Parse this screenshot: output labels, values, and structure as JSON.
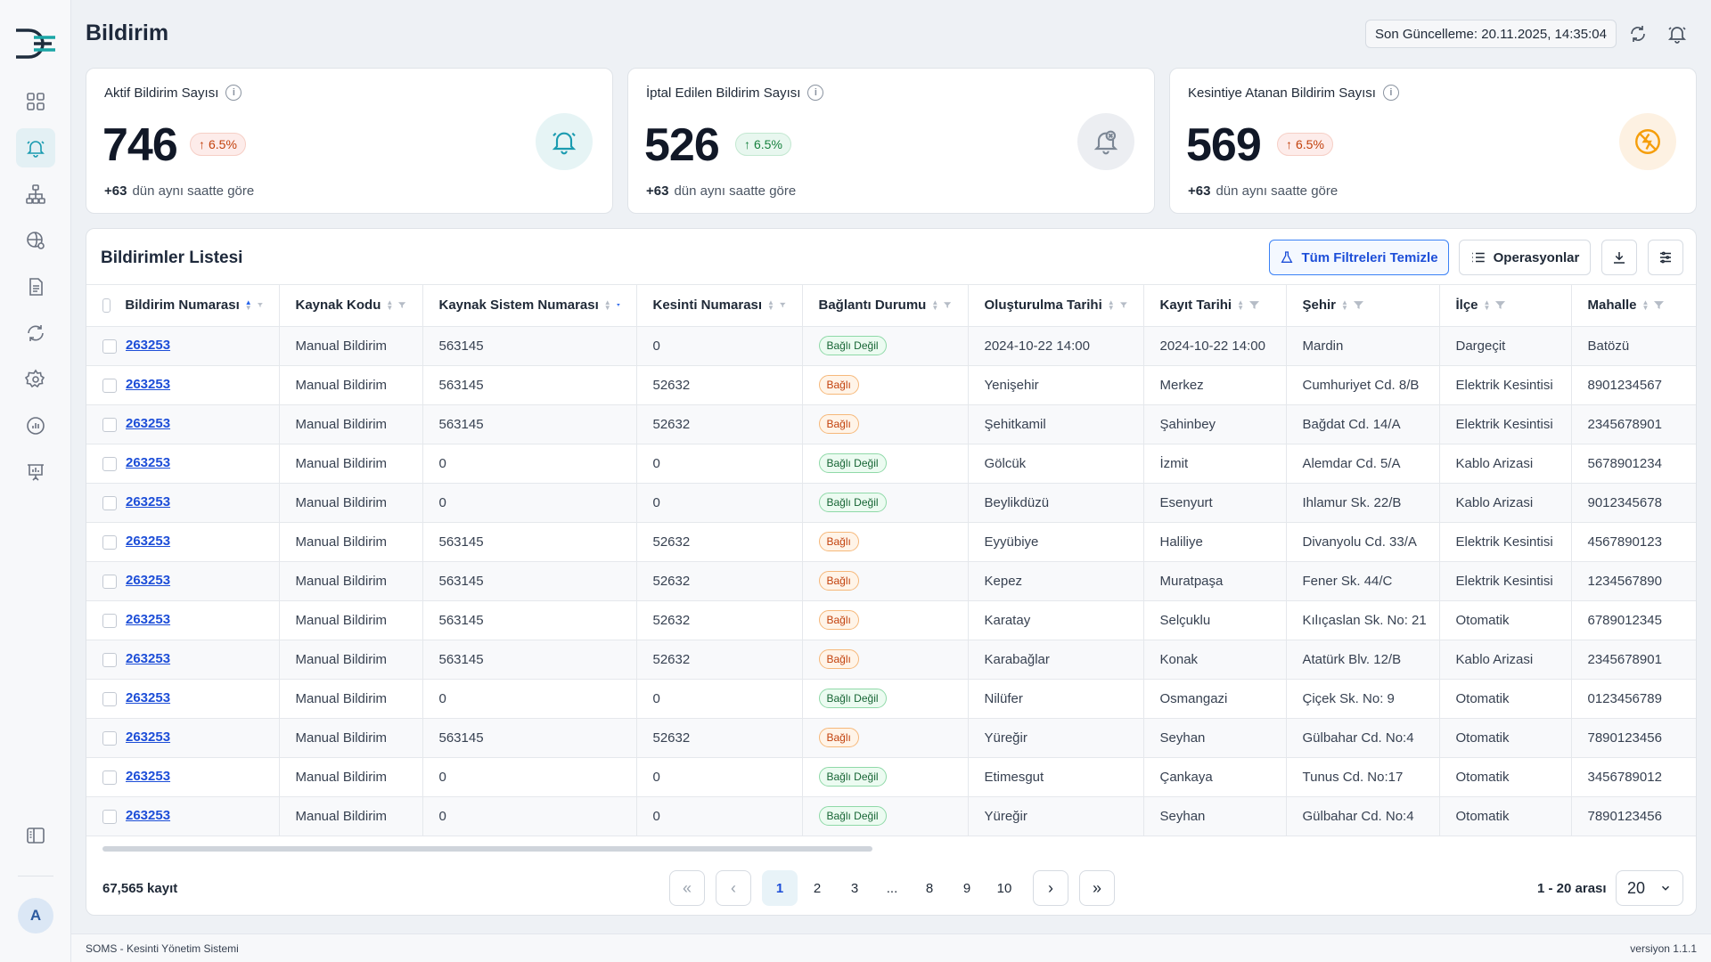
{
  "page": {
    "title": "Bildirim",
    "last_update": "Son Güncelleme: 20.11.2025, 14:35:04"
  },
  "sidebar": {
    "avatar_initial": "A"
  },
  "cards": [
    {
      "title": "Aktif Bildirim Sayısı",
      "value": "746",
      "trend": "6.5%",
      "trend_color": "red",
      "delta": "+63",
      "delta_text": "dün aynı saatte göre",
      "icon": "bell-icon"
    },
    {
      "title": "İptal Edilen Bildirim Sayısı",
      "value": "526",
      "trend": "6.5%",
      "trend_color": "green",
      "delta": "+63",
      "delta_text": "dün aynı saatte göre",
      "icon": "bell-cancel-icon"
    },
    {
      "title": "Kesintiye Atanan Bildirim Sayısı",
      "value": "569",
      "trend": "6.5%",
      "trend_color": "red",
      "delta": "+63",
      "delta_text": "dün aynı saatte göre",
      "icon": "power-off-icon"
    }
  ],
  "list": {
    "title": "Bildirimler Listesi",
    "clear_filters": "Tüm Filtreleri Temizle",
    "operations": "Operasyonlar",
    "columns": [
      "Bildirim Numarası",
      "Kaynak Kodu",
      "Kaynak Sistem Numarası",
      "Kesinti Numarası",
      "Bağlantı Durumu",
      "Oluşturulma Tarihi",
      "Kayıt Tarihi",
      "Şehir",
      "İlçe",
      "Mahalle"
    ],
    "rows": [
      [
        "263253",
        "Manual Bildirim",
        "563145",
        "0",
        "Bağlı Değil",
        "2024-10-22 14:00",
        "2024-10-22 14:00",
        "Mardin",
        "Dargeçit",
        "Batözü"
      ],
      [
        "263253",
        "Manual Bildirim",
        "563145",
        "52632",
        "Bağlı",
        "Yenişehir",
        "Merkez",
        "Cumhuriyet Cd. 8/B",
        "Elektrik Kesintisi",
        "8901234567"
      ],
      [
        "263253",
        "Manual Bildirim",
        "563145",
        "52632",
        "Bağlı",
        "Şehitkamil",
        "Şahinbey",
        "Bağdat Cd. 14/A",
        "Elektrik Kesintisi",
        "2345678901"
      ],
      [
        "263253",
        "Manual Bildirim",
        "0",
        "0",
        "Bağlı Değil",
        "Gölcük",
        "İzmit",
        "Alemdar Cd. 5/A",
        "Kablo Arizasi",
        "5678901234"
      ],
      [
        "263253",
        "Manual Bildirim",
        "0",
        "0",
        "Bağlı Değil",
        "Beylikdüzü",
        "Esenyurt",
        "Ihlamur Sk. 22/B",
        "Kablo Arizasi",
        "9012345678"
      ],
      [
        "263253",
        "Manual Bildirim",
        "563145",
        "52632",
        "Bağlı",
        "Eyyübiye",
        "Haliliye",
        "Divanyolu Cd. 33/A",
        "Elektrik Kesintisi",
        "4567890123"
      ],
      [
        "263253",
        "Manual Bildirim",
        "563145",
        "52632",
        "Bağlı",
        "Kepez",
        "Muratpaşa",
        "Fener Sk. 44/C",
        "Elektrik Kesintisi",
        "1234567890"
      ],
      [
        "263253",
        "Manual Bildirim",
        "563145",
        "52632",
        "Bağlı",
        "Karatay",
        "Selçuklu",
        "Kılıçaslan Sk. No: 21",
        "Otomatik",
        "6789012345"
      ],
      [
        "263253",
        "Manual Bildirim",
        "563145",
        "52632",
        "Bağlı",
        "Karabağlar",
        "Konak",
        "Atatürk Blv. 12/B",
        "Kablo Arizasi",
        "2345678901"
      ],
      [
        "263253",
        "Manual Bildirim",
        "0",
        "0",
        "Bağlı Değil",
        "Nilüfer",
        "Osmangazi",
        "Çiçek Sk. No: 9",
        "Otomatik",
        "0123456789"
      ],
      [
        "263253",
        "Manual Bildirim",
        "563145",
        "52632",
        "Bağlı",
        "Yüreğir",
        "Seyhan",
        "Gülbahar Cd. No:4",
        "Otomatik",
        "7890123456"
      ],
      [
        "263253",
        "Manual Bildirim",
        "0",
        "0",
        "Bağlı Değil",
        "Etimesgut",
        "Çankaya",
        "Tunus Cd. No:17",
        "Otomatik",
        "3456789012"
      ],
      [
        "263253",
        "Manual Bildirim",
        "0",
        "0",
        "Bağlı Değil",
        "Yüreğir",
        "Seyhan",
        "Gülbahar Cd. No:4",
        "Otomatik",
        "7890123456"
      ]
    ]
  },
  "pagination": {
    "total": "67,565 kayıt",
    "pages": [
      "1",
      "2",
      "3",
      "...",
      "8",
      "9",
      "10"
    ],
    "current": "1",
    "range": "1 - 20 arası",
    "page_size": "20"
  },
  "footer": {
    "app_name": "SOMS - Kesinti Yönetim Sistemi",
    "version": "versiyon 1.1.1"
  },
  "colors": {
    "accent": "#1d4ed8",
    "brand_teal": "#1aa6a6",
    "badge_green": "#166534",
    "badge_orange": "#c2410c"
  }
}
